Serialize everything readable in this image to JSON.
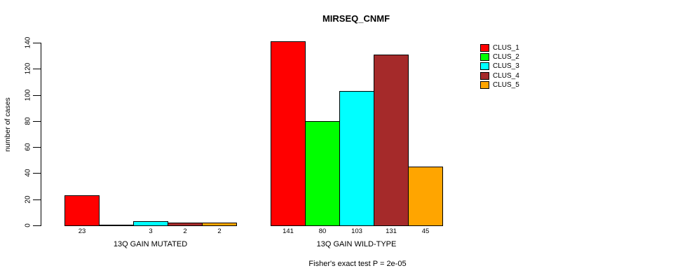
{
  "chart_data": {
    "type": "bar",
    "title": "MIRSEQ_CNMF",
    "ylabel": "number of cases",
    "ylim": [
      0,
      140
    ],
    "yticks": [
      "0",
      "20",
      "40",
      "60",
      "80",
      "100",
      "120",
      "140"
    ],
    "categories": [
      "13Q GAIN MUTATED",
      "13Q GAIN WILD-TYPE"
    ],
    "series": [
      {
        "name": "CLUS_1",
        "color": "#FF0000",
        "values": [
          23,
          141
        ]
      },
      {
        "name": "CLUS_2",
        "color": "#00FF00",
        "values": [
          0,
          80
        ]
      },
      {
        "name": "CLUS_3",
        "color": "#00FFFF",
        "values": [
          3,
          103
        ]
      },
      {
        "name": "CLUS_4",
        "color": "#A52A2A",
        "values": [
          2,
          131
        ]
      },
      {
        "name": "CLUS_5",
        "color": "#FFA500",
        "values": [
          2,
          45
        ]
      }
    ],
    "bar_value_labels": [
      [
        "23",
        "",
        "3",
        "2",
        "2"
      ],
      [
        "141",
        "80",
        "103",
        "131",
        "45"
      ]
    ],
    "legend": [
      {
        "label": "CLUS_1",
        "color": "#FF0000"
      },
      {
        "label": "CLUS_2",
        "color": "#00FF00"
      },
      {
        "label": "CLUS_3",
        "color": "#00FFFF"
      },
      {
        "label": "CLUS_4",
        "color": "#A52A2A"
      },
      {
        "label": "CLUS_5",
        "color": "#FFA500"
      }
    ],
    "legend_position": "right",
    "grid": false,
    "annotation": "Fisher's exact test P = 2e-05"
  }
}
